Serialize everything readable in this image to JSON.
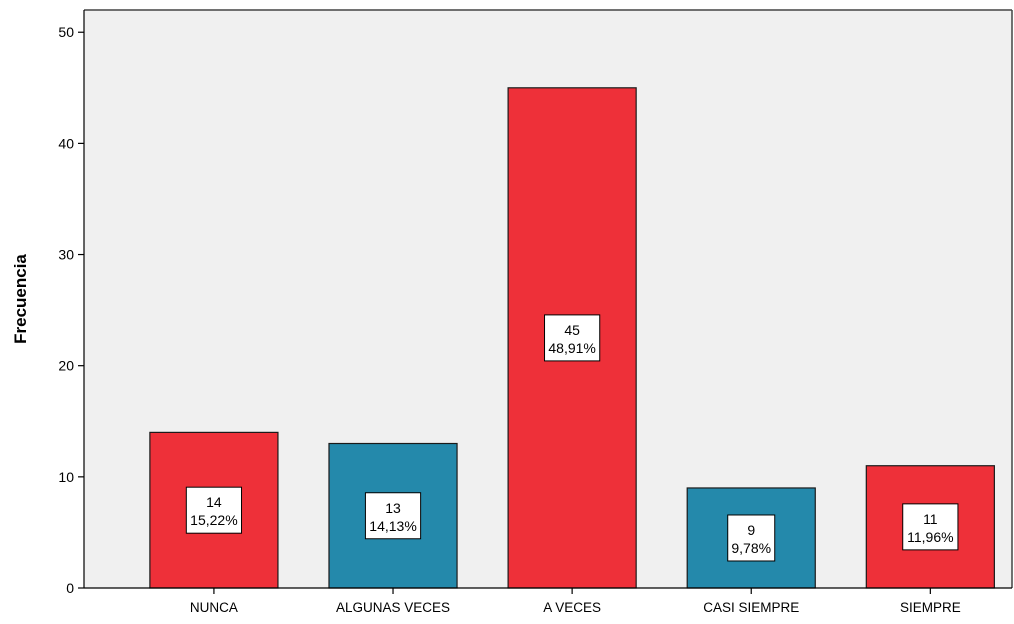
{
  "chart_data": {
    "type": "bar",
    "categories": [
      "NUNCA",
      "ALGUNAS VECES",
      "A VECES",
      "CASI SIEMPRE",
      "SIEMPRE"
    ],
    "values": [
      14,
      13,
      45,
      9,
      11
    ],
    "percent_labels": [
      "15,22%",
      "14,13%",
      "48,91%",
      "9,78%",
      "11,96%"
    ],
    "bar_colors": [
      "#ee3039",
      "#2489ab",
      "#ee3039",
      "#2489ab",
      "#ee3039"
    ],
    "plot_background": "#f0f0f0",
    "ylabel": "Frecuencia",
    "xlabel": "",
    "ylim": [
      0,
      52
    ],
    "yticks": [
      0,
      10,
      20,
      30,
      40,
      50
    ],
    "grid": false,
    "legend": "none"
  }
}
